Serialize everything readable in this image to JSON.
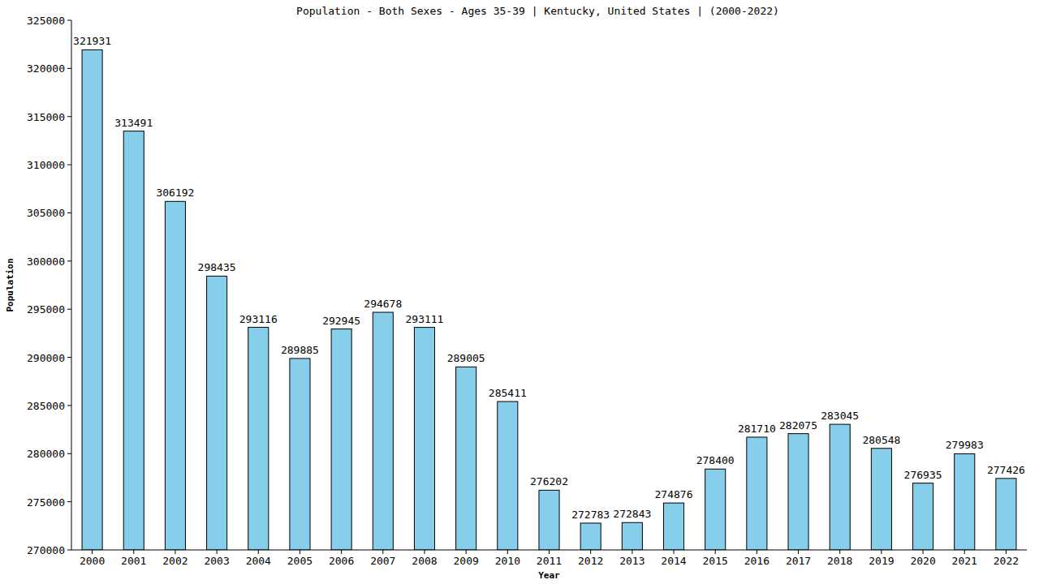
{
  "chart_data": {
    "type": "bar",
    "title": "Population - Both Sexes - Ages 35-39 | Kentucky, United States |  (2000-2022)",
    "x_label": "Year",
    "y_label": "Population",
    "categories": [
      "2000",
      "2001",
      "2002",
      "2003",
      "2004",
      "2005",
      "2006",
      "2007",
      "2008",
      "2009",
      "2010",
      "2011",
      "2012",
      "2013",
      "2014",
      "2015",
      "2016",
      "2017",
      "2018",
      "2019",
      "2020",
      "2021",
      "2022"
    ],
    "values": [
      321931,
      313491,
      306192,
      298435,
      293116,
      289885,
      292945,
      294678,
      293111,
      289005,
      285411,
      276202,
      272783,
      272843,
      274876,
      278400,
      281710,
      282075,
      283045,
      280548,
      276935,
      279983,
      277426
    ],
    "color": "#87ceeb",
    "ylim": [
      270000,
      325000
    ],
    "yticks": [
      270000,
      275000,
      280000,
      285000,
      290000,
      295000,
      300000,
      305000,
      310000,
      315000,
      320000,
      325000
    ],
    "grid": false,
    "data_labels": true
  }
}
